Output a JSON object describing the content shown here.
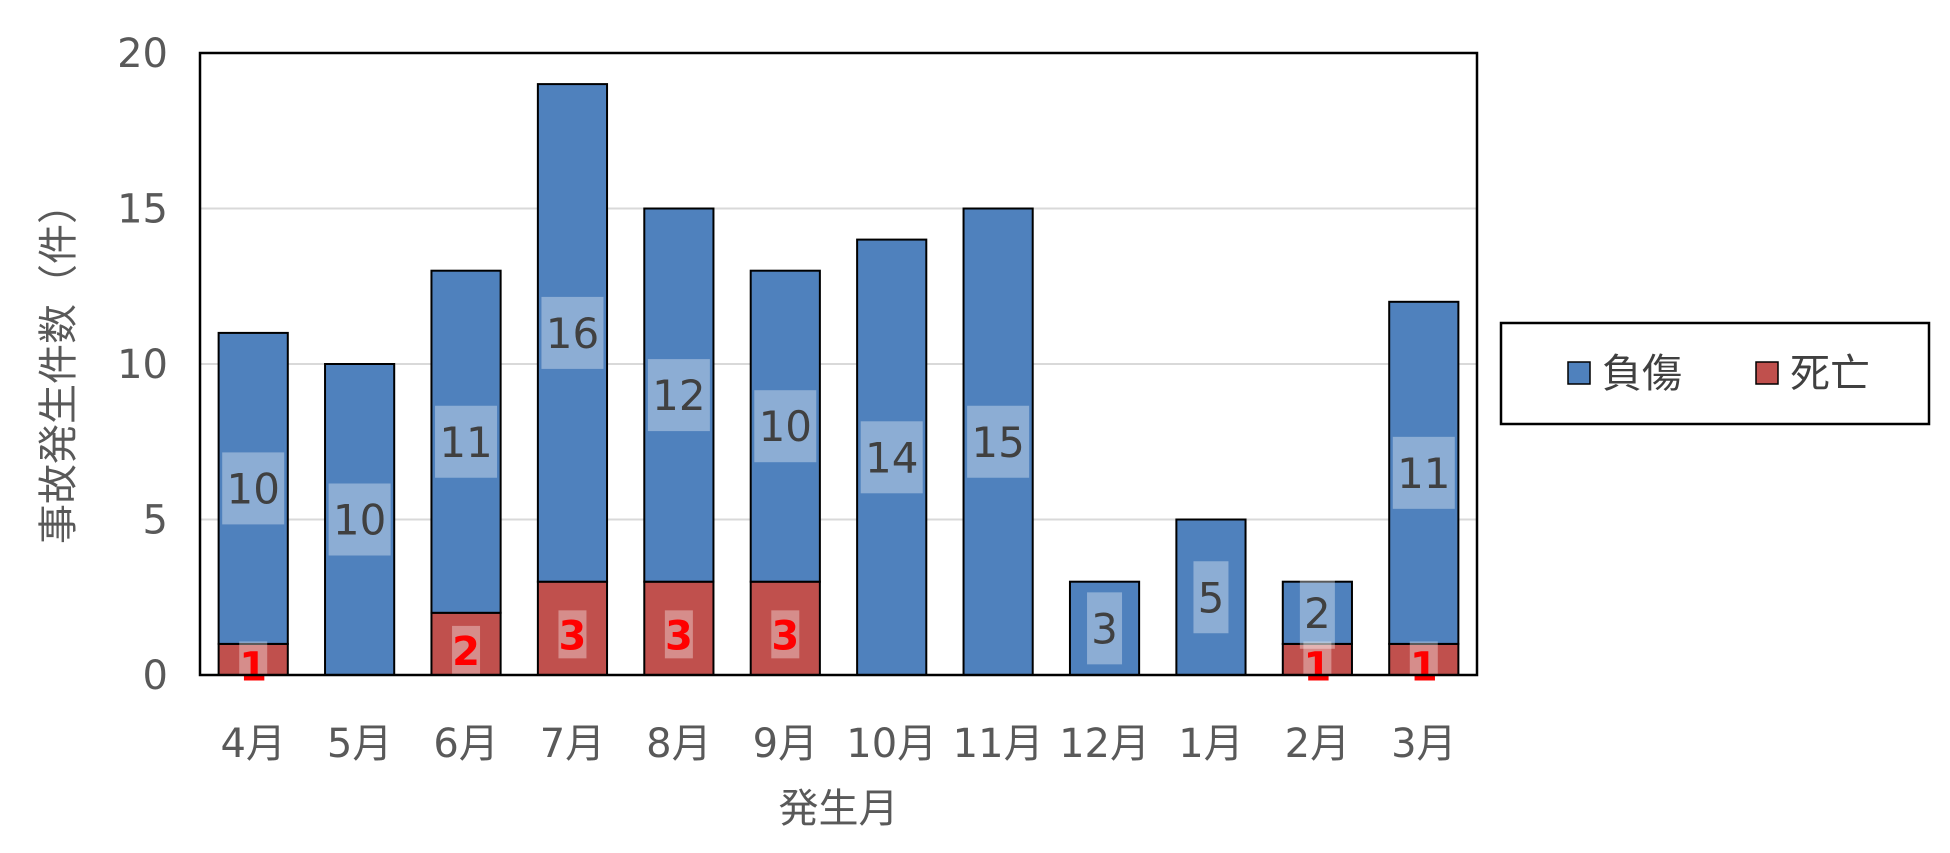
{
  "chart_data": {
    "type": "bar",
    "stacked": true,
    "categories": [
      "4月",
      "5月",
      "6月",
      "7月",
      "8月",
      "9月",
      "10月",
      "11月",
      "12月",
      "1月",
      "2月",
      "3月"
    ],
    "series": [
      {
        "name": "死亡",
        "color": "#C0504D",
        "values": [
          1,
          0,
          2,
          3,
          3,
          3,
          0,
          0,
          0,
          0,
          1,
          1
        ]
      },
      {
        "name": "負傷",
        "color": "#4F81BD",
        "values": [
          10,
          10,
          11,
          16,
          12,
          10,
          14,
          15,
          3,
          5,
          2,
          11
        ]
      }
    ],
    "title": "",
    "xlabel": "発生月",
    "ylabel": "事故発生件数（件）",
    "ylim": [
      0,
      20
    ],
    "yticks": [
      0,
      5,
      10,
      15,
      20
    ],
    "grid": true,
    "legend": [
      "負傷",
      "死亡"
    ],
    "legend_position": "right",
    "data_label_colors": {
      "負傷": "#404040",
      "死亡": "#FF0000"
    }
  }
}
